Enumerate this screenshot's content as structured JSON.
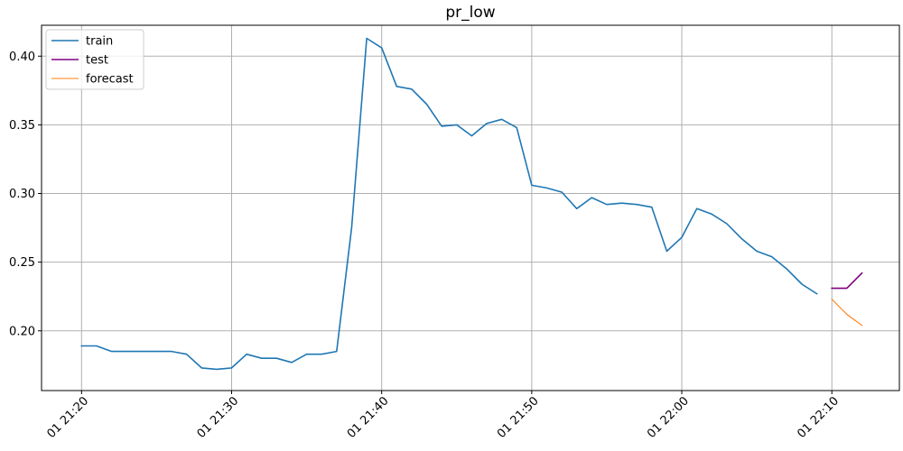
{
  "chart_data": {
    "type": "line",
    "title": "pr_low",
    "xlabel": "",
    "ylabel": "",
    "x_tick_labels": [
      "01 21:20",
      "01 21:30",
      "01 21:40",
      "01 21:50",
      "01 22:00",
      "01 22:10"
    ],
    "y_tick_labels": [
      "0.20",
      "0.25",
      "0.30",
      "0.35",
      "0.40"
    ],
    "y_ticks": [
      0.2,
      0.25,
      0.3,
      0.35,
      0.4
    ],
    "ylim": [
      0.1565,
      0.4225
    ],
    "xlim": [
      "01 21:17:20",
      "01 22:14:30"
    ],
    "grid": true,
    "legend_position": "top-left",
    "series": [
      {
        "name": "train",
        "color": "#1f77b4",
        "x": [
          "01 21:20",
          "01 21:21",
          "01 21:22",
          "01 21:23",
          "01 21:24",
          "01 21:25",
          "01 21:26",
          "01 21:27",
          "01 21:28",
          "01 21:29",
          "01 21:30",
          "01 21:31",
          "01 21:32",
          "01 21:33",
          "01 21:34",
          "01 21:35",
          "01 21:36",
          "01 21:37",
          "01 21:38",
          "01 21:39",
          "01 21:40",
          "01 21:41",
          "01 21:42",
          "01 21:43",
          "01 21:44",
          "01 21:45",
          "01 21:46",
          "01 21:47",
          "01 21:48",
          "01 21:49",
          "01 21:50",
          "01 21:51",
          "01 21:52",
          "01 21:53",
          "01 21:54",
          "01 21:55",
          "01 21:56",
          "01 21:57",
          "01 21:58",
          "01 21:59",
          "01 22:00",
          "01 22:01",
          "01 22:02",
          "01 22:03",
          "01 22:04",
          "01 22:05",
          "01 22:06",
          "01 22:07",
          "01 22:08",
          "01 22:09"
        ],
        "values": [
          0.189,
          0.189,
          0.185,
          0.185,
          0.185,
          0.185,
          0.185,
          0.183,
          0.173,
          0.172,
          0.173,
          0.183,
          0.18,
          0.18,
          0.177,
          0.183,
          0.183,
          0.185,
          0.275,
          0.413,
          0.406,
          0.378,
          0.376,
          0.365,
          0.349,
          0.35,
          0.342,
          0.351,
          0.354,
          0.348,
          0.306,
          0.304,
          0.301,
          0.289,
          0.297,
          0.292,
          0.293,
          0.292,
          0.29,
          0.258,
          0.268,
          0.289,
          0.285,
          0.278,
          0.267,
          0.258,
          0.254,
          0.245,
          0.234,
          0.227
        ]
      },
      {
        "name": "test",
        "color": "#800080",
        "x": [
          "01 22:10",
          "01 22:11",
          "01 22:12"
        ],
        "values": [
          0.231,
          0.231,
          0.242
        ]
      },
      {
        "name": "forecast",
        "color": "#ff7f0e",
        "x": [
          "01 22:10",
          "01 22:11",
          "01 22:12"
        ],
        "values": [
          0.223,
          0.212,
          0.204
        ]
      }
    ]
  }
}
